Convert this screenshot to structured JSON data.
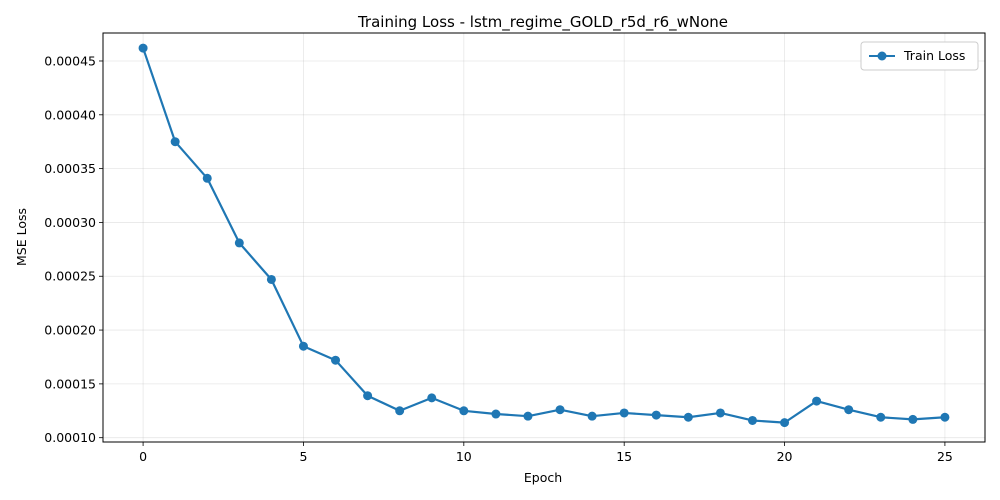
{
  "chart_data": {
    "type": "line",
    "title": "Training Loss - lstm_regime_GOLD_r5d_r6_wNone",
    "xlabel": "Epoch",
    "ylabel": "MSE Loss",
    "xlim": [
      -1.25,
      26.25
    ],
    "ylim": [
      9.6e-05,
      0.000476
    ],
    "x_ticks": [
      0,
      5,
      10,
      15,
      20,
      25
    ],
    "x_tick_labels": [
      "0",
      "5",
      "10",
      "15",
      "20",
      "25"
    ],
    "y_ticks": [
      0.0001,
      0.00015,
      0.0002,
      0.00025,
      0.0003,
      0.00035,
      0.0004,
      0.00045
    ],
    "y_tick_labels": [
      "0.00010",
      "0.00015",
      "0.00020",
      "0.00025",
      "0.00030",
      "0.00035",
      "0.00040",
      "0.00045"
    ],
    "grid": true,
    "legend_position": "top-right",
    "series": [
      {
        "name": "Train Loss",
        "color": "#1f77b4",
        "x": [
          0,
          1,
          2,
          3,
          4,
          5,
          6,
          7,
          8,
          9,
          10,
          11,
          12,
          13,
          14,
          15,
          16,
          17,
          18,
          19,
          20,
          21,
          22,
          23,
          24,
          25
        ],
        "values": [
          0.000462,
          0.000375,
          0.000341,
          0.000281,
          0.000247,
          0.000185,
          0.000172,
          0.000139,
          0.000125,
          0.000137,
          0.000125,
          0.000122,
          0.00012,
          0.000126,
          0.00012,
          0.000123,
          0.000121,
          0.000119,
          0.000123,
          0.000116,
          0.000114,
          0.000134,
          0.000126,
          0.000119,
          0.000117,
          0.000119
        ]
      }
    ]
  }
}
